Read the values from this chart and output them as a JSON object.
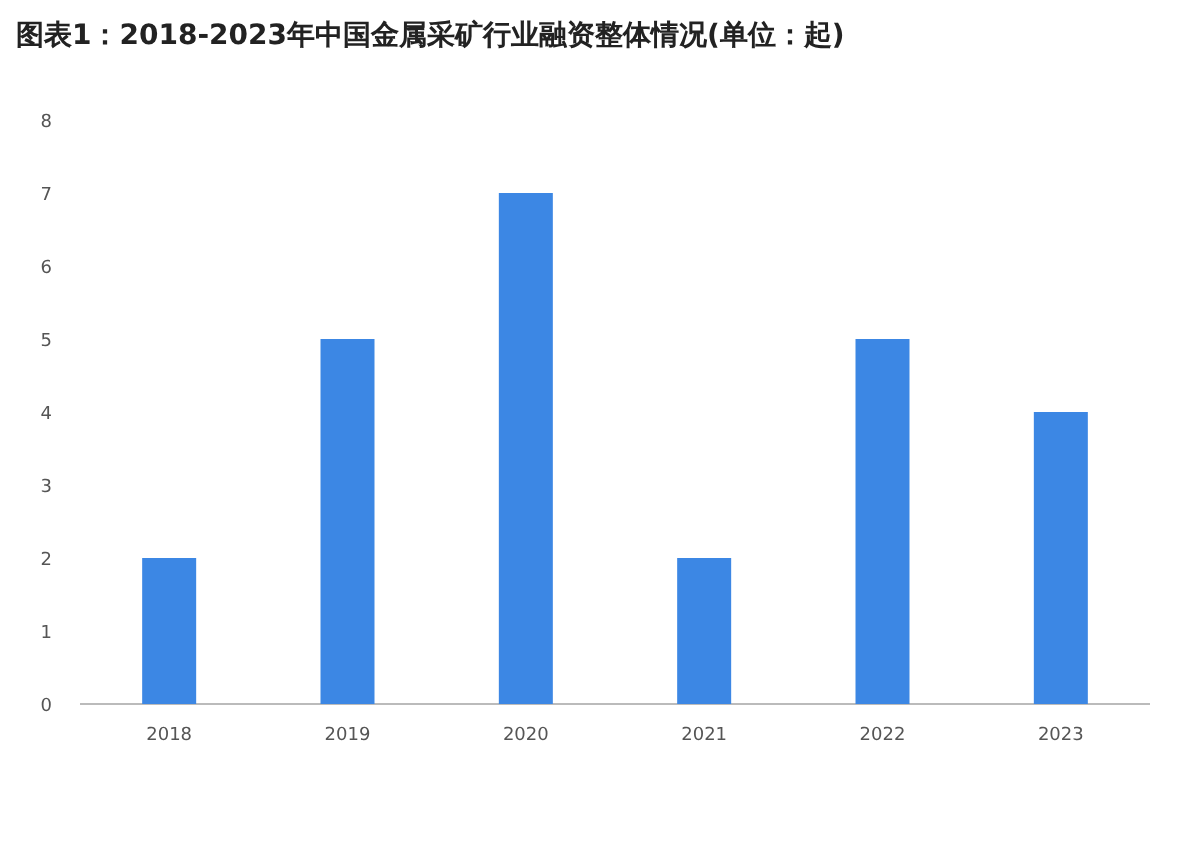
{
  "chart_data": {
    "type": "bar",
    "title": "图表1：2018-2023年中国金属采矿行业融资整体情况(单位：起)",
    "categories": [
      "2018",
      "2019",
      "2020",
      "2021",
      "2022",
      "2023"
    ],
    "values": [
      2,
      5,
      7,
      2,
      5,
      4
    ],
    "color": "#3c87e4",
    "ylim": [
      0,
      8
    ],
    "yticks": [
      0,
      1,
      2,
      3,
      4,
      5,
      6,
      7,
      8
    ],
    "grid": false
  }
}
